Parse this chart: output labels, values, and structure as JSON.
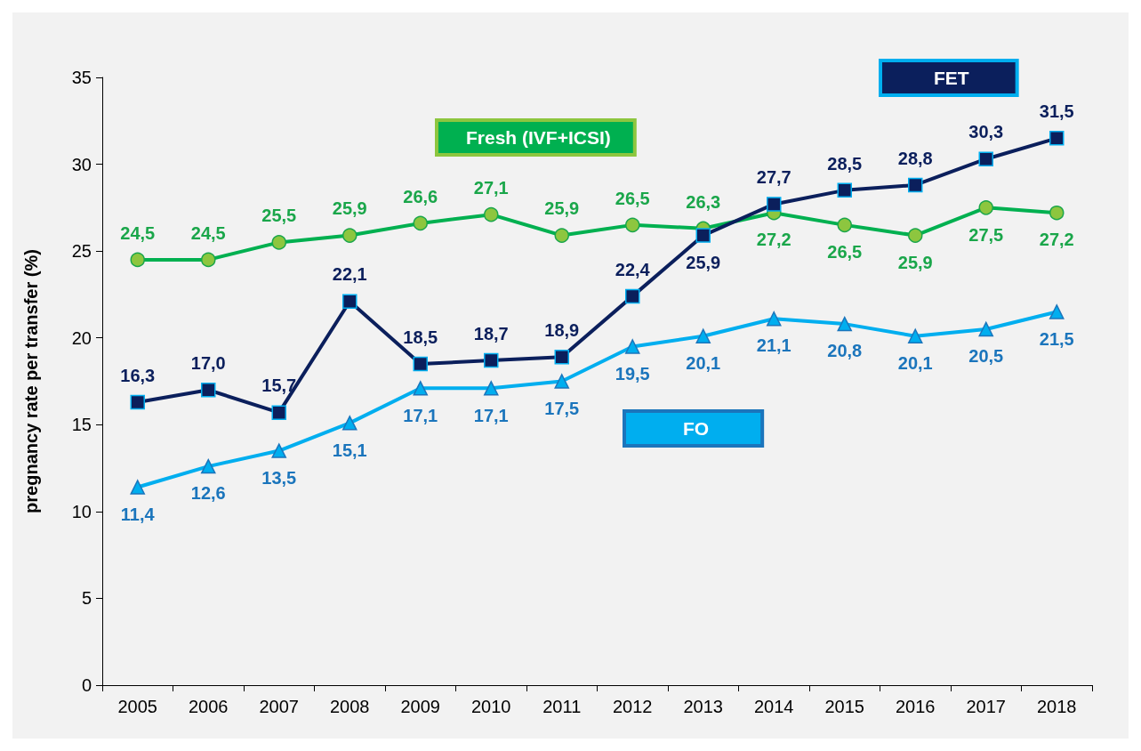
{
  "chart_data": {
    "type": "line",
    "ylabel": "pregnancy rate per transfer (%)",
    "categories": [
      "2005",
      "2006",
      "2007",
      "2008",
      "2009",
      "2010",
      "2011",
      "2012",
      "2013",
      "2014",
      "2015",
      "2016",
      "2017",
      "2018"
    ],
    "series": [
      {
        "name": "Fresh (IVF+ICSI)",
        "color": "#00b050",
        "marker": "circle",
        "values": [
          24.5,
          24.5,
          25.5,
          25.9,
          26.6,
          27.1,
          25.9,
          26.5,
          26.3,
          27.2,
          26.5,
          25.9,
          27.5,
          27.2
        ],
        "value_labels": [
          "24,5",
          "24,5",
          "25,5",
          "25,9",
          "26,6",
          "27,1",
          "25,9",
          "26,5",
          "26,3",
          "27,2",
          "26,5",
          "25,9",
          "27,5",
          "27,2"
        ]
      },
      {
        "name": "FET",
        "color": "#0b1f5c",
        "marker": "square",
        "values": [
          16.3,
          17.0,
          15.7,
          22.1,
          18.5,
          18.7,
          18.9,
          22.4,
          25.9,
          27.7,
          28.5,
          28.8,
          30.3,
          31.5
        ],
        "value_labels": [
          "16,3",
          "17,0",
          "15,7",
          "22,1",
          "18,5",
          "18,7",
          "18,9",
          "22,4",
          "25,9",
          "27,7",
          "28,5",
          "28,8",
          "30,3",
          "31,5"
        ]
      },
      {
        "name": "FO",
        "color": "#00aeef",
        "marker": "triangle",
        "values": [
          11.4,
          12.6,
          13.5,
          15.1,
          17.1,
          17.1,
          17.5,
          19.5,
          20.1,
          21.1,
          20.8,
          20.1,
          20.5,
          21.5
        ],
        "value_labels": [
          "11,4",
          "12,6",
          "13,5",
          "15,1",
          "17,1",
          "17,1",
          "17,5",
          "19,5",
          "20,1",
          "21,1",
          "20,8",
          "20,1",
          "20,5",
          "21,5"
        ]
      }
    ],
    "ylim": [
      0,
      35
    ],
    "yticks": [
      0,
      5,
      10,
      15,
      20,
      25,
      30,
      35
    ],
    "grid": false,
    "legend": "top right"
  }
}
